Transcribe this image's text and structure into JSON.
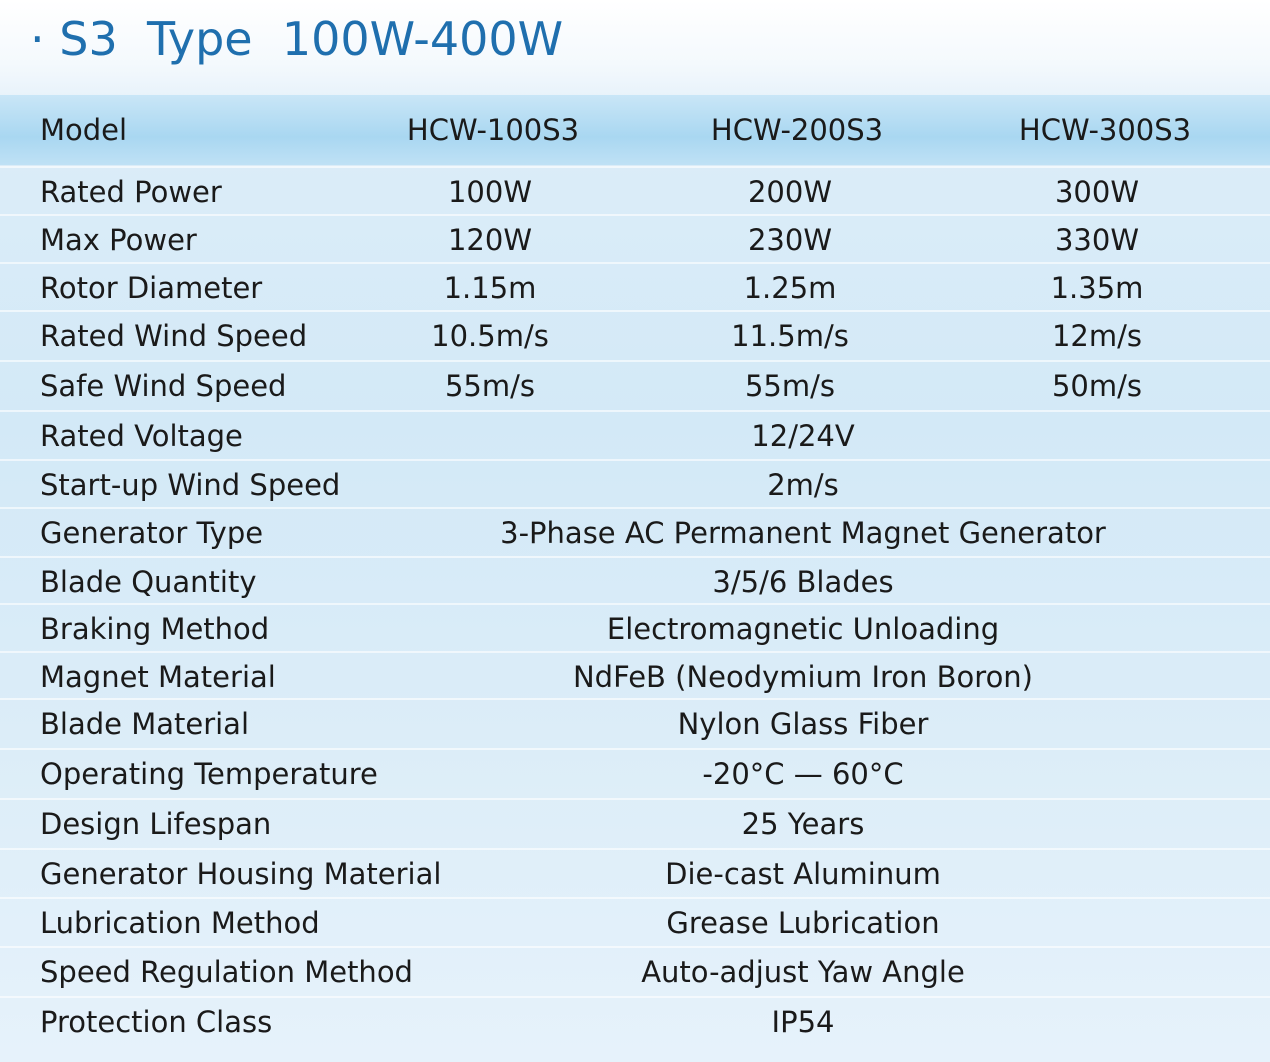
{
  "header": {
    "title": "· S3  Type  100W-400W"
  },
  "table": {
    "columns": [
      "Model",
      "HCW-100S3",
      "HCW-200S3",
      "HCW-300S3"
    ],
    "rows": [
      [
        "Rated Power",
        "100W",
        "200W",
        "300W"
      ],
      [
        "Max Power",
        "120W",
        "230W",
        "330W"
      ],
      [
        "Rotor Diameter",
        "1.15m",
        "1.25m",
        "1.35m"
      ],
      [
        "Rated Wind Speed",
        "10.5m/s",
        "11.5m/s",
        "12m/s"
      ],
      [
        "Safe Wind Speed",
        "55m/s",
        "55m/s",
        "50m/s"
      ],
      [
        "Rated Voltage",
        "12/24V"
      ],
      [
        "Start-up Wind Speed",
        "2m/s"
      ],
      [
        "Generator Type",
        "3-Phase AC Permanent Magnet Generator"
      ],
      [
        "Blade Quantity",
        "3/5/6 Blades"
      ],
      [
        "Braking Method",
        "Electromagnetic Unloading"
      ],
      [
        "Magnet Material",
        "NdFeB (Neodymium Iron Boron)"
      ],
      [
        "Blade Material",
        "Nylon Glass Fiber"
      ],
      [
        "Operating Temperature",
        "-20°C — 60°C"
      ],
      [
        "Design Lifespan",
        "25 Years"
      ],
      [
        "Generator Housing Material",
        "Die-cast Aluminum"
      ],
      [
        "Lubrication Method",
        "Grease Lubrication"
      ],
      [
        "Speed Regulation Method",
        "Auto-adjust Yaw Angle"
      ],
      [
        "Protection Class",
        "IP54"
      ]
    ]
  }
}
